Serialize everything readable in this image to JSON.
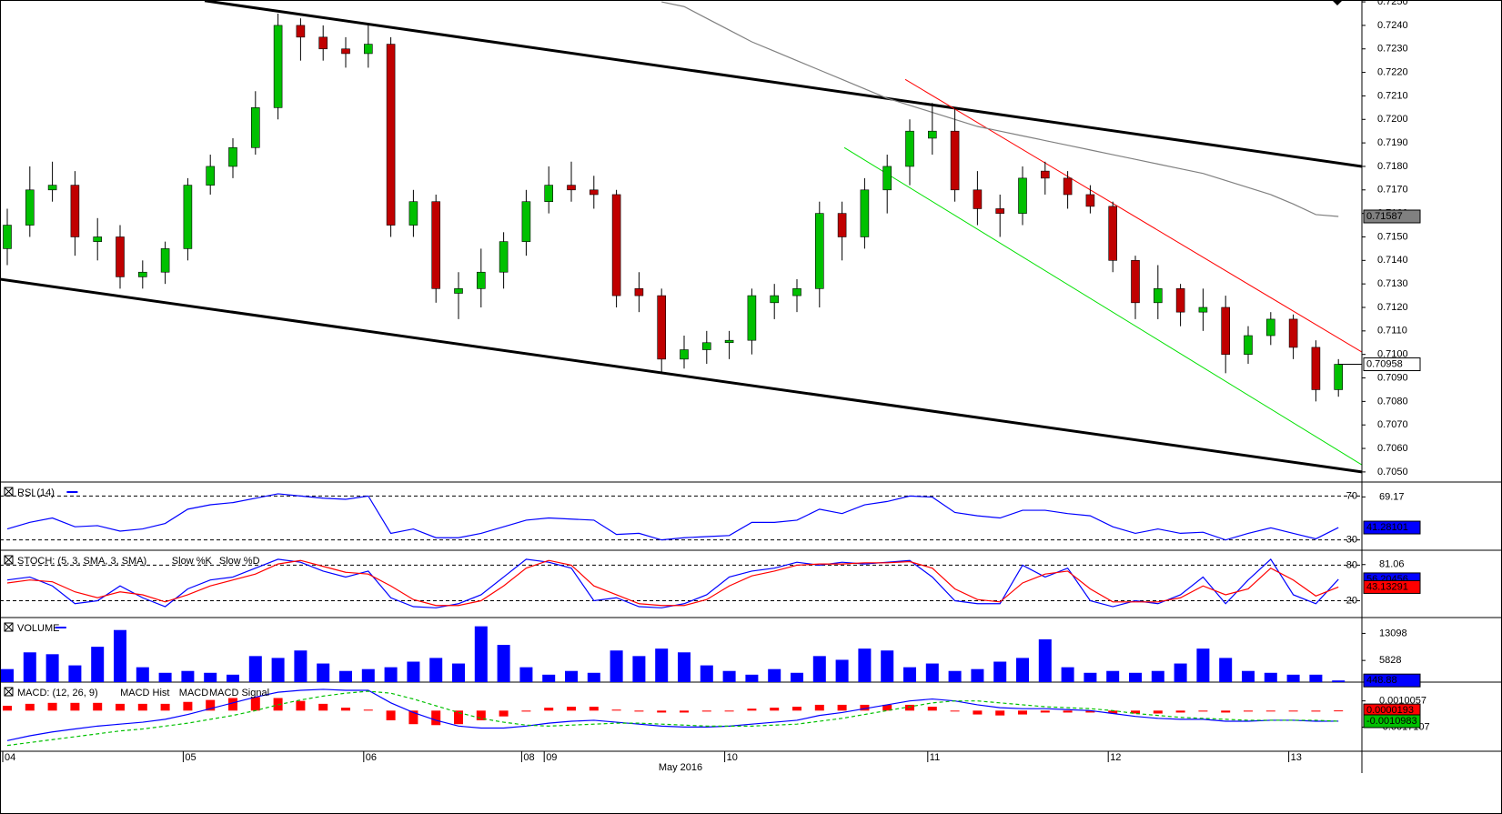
{
  "chart_data": [
    {
      "type": "candlestick",
      "up_color": "#00c000",
      "down_color": "#c00000",
      "categories": [
        "04",
        null,
        null,
        null,
        null,
        null,
        null,
        null,
        "05",
        null,
        null,
        null,
        null,
        null,
        null,
        null,
        "06",
        null,
        null,
        null,
        null,
        null,
        null,
        "08",
        "09",
        null,
        null,
        null,
        null,
        null,
        null,
        null,
        "10",
        null,
        null,
        null,
        null,
        null,
        null,
        null,
        null,
        "11",
        null,
        null,
        null,
        null,
        null,
        null,
        null,
        "12",
        null,
        null,
        null,
        null,
        null,
        null,
        null,
        "13",
        null,
        null
      ],
      "x_axis_label": "May 2016",
      "open": [
        0.7145,
        0.7155,
        0.717,
        0.7172,
        0.7148,
        0.715,
        0.7133,
        0.7135,
        0.7145,
        0.7172,
        0.718,
        0.7188,
        0.7205,
        0.724,
        0.7235,
        0.723,
        0.7228,
        0.7232,
        0.7155,
        0.7165,
        0.7126,
        0.7128,
        0.7135,
        0.7148,
        0.7165,
        0.7172,
        0.717,
        0.7168,
        0.7128,
        0.7125,
        0.7098,
        0.7102,
        0.7105,
        0.7106,
        0.7122,
        0.7125,
        0.7128,
        0.716,
        0.715,
        0.717,
        0.718,
        0.7192,
        0.7195,
        0.717,
        0.7162,
        0.716,
        0.7178,
        0.7175,
        0.7168,
        0.7163,
        0.714,
        0.7122,
        0.7128,
        0.7118,
        0.712,
        0.71,
        0.7108,
        0.7115,
        0.7103,
        0.7085
      ],
      "high": [
        0.7162,
        0.718,
        0.7182,
        0.7178,
        0.7158,
        0.7155,
        0.714,
        0.7148,
        0.7175,
        0.7185,
        0.7192,
        0.7212,
        0.7245,
        0.7243,
        0.724,
        0.7235,
        0.724,
        0.7235,
        0.717,
        0.7168,
        0.7135,
        0.7145,
        0.7152,
        0.717,
        0.718,
        0.7182,
        0.7176,
        0.717,
        0.7135,
        0.7128,
        0.7108,
        0.711,
        0.711,
        0.7128,
        0.713,
        0.7132,
        0.7165,
        0.7165,
        0.7175,
        0.7185,
        0.72,
        0.7207,
        0.7205,
        0.7178,
        0.7168,
        0.718,
        0.7182,
        0.7178,
        0.7172,
        0.7165,
        0.7142,
        0.7138,
        0.713,
        0.7128,
        0.7125,
        0.7112,
        0.7118,
        0.7117,
        0.7106,
        0.7098
      ],
      "low": [
        0.7138,
        0.715,
        0.7165,
        0.7142,
        0.714,
        0.7128,
        0.7128,
        0.713,
        0.714,
        0.7168,
        0.7175,
        0.7185,
        0.72,
        0.7225,
        0.7225,
        0.7222,
        0.7222,
        0.715,
        0.715,
        0.7122,
        0.7115,
        0.712,
        0.7128,
        0.7142,
        0.716,
        0.7165,
        0.7162,
        0.712,
        0.7118,
        0.7092,
        0.7094,
        0.7096,
        0.7098,
        0.71,
        0.7115,
        0.7118,
        0.712,
        0.714,
        0.7145,
        0.716,
        0.7172,
        0.7185,
        0.7165,
        0.7155,
        0.715,
        0.7155,
        0.7168,
        0.7162,
        0.716,
        0.7135,
        0.7115,
        0.7115,
        0.7112,
        0.711,
        0.7092,
        0.7096,
        0.7104,
        0.7098,
        0.708,
        0.7082
      ],
      "close": [
        0.7155,
        0.717,
        0.7172,
        0.715,
        0.715,
        0.7133,
        0.7135,
        0.7145,
        0.7172,
        0.718,
        0.7188,
        0.7205,
        0.724,
        0.7235,
        0.723,
        0.7228,
        0.7232,
        0.7155,
        0.7165,
        0.7128,
        0.7128,
        0.7135,
        0.7148,
        0.7165,
        0.7172,
        0.717,
        0.7168,
        0.7125,
        0.7125,
        0.7098,
        0.7102,
        0.7105,
        0.7106,
        0.7125,
        0.7125,
        0.7128,
        0.716,
        0.715,
        0.717,
        0.718,
        0.7195,
        0.7195,
        0.717,
        0.7162,
        0.716,
        0.7175,
        0.7175,
        0.7168,
        0.7163,
        0.714,
        0.7122,
        0.7128,
        0.7118,
        0.712,
        0.71,
        0.7108,
        0.7115,
        0.7103,
        0.7085,
        0.70958
      ],
      "moving_average": {
        "color": "#808080",
        "values": [
          null,
          null,
          null,
          null,
          null,
          null,
          null,
          null,
          null,
          null,
          null,
          null,
          null,
          null,
          null,
          null,
          null,
          null,
          null,
          null,
          null,
          null,
          null,
          null,
          null,
          null,
          null,
          null,
          null,
          0.725,
          0.7248,
          0.7243,
          0.7238,
          0.7233,
          0.7229,
          0.7225,
          0.7221,
          0.7217,
          0.7213,
          0.7209,
          0.7206,
          0.7203,
          0.72,
          0.7197,
          0.7195,
          0.7193,
          0.7191,
          0.7189,
          0.7187,
          0.7185,
          0.7183,
          0.7181,
          0.7179,
          0.7177,
          0.7174,
          0.7171,
          0.7168,
          0.7164,
          0.71595,
          0.71587
        ]
      },
      "trendlines": [
        {
          "color": "#000000",
          "width": 3,
          "x": [
            8.75,
            60.04
          ],
          "values": [
            0.72505,
            0.718
          ]
        },
        {
          "color": "#000000",
          "width": 3,
          "x": [
            -0.32,
            60.04
          ],
          "values": [
            0.7132,
            0.705
          ]
        },
        {
          "color": "#ff0000",
          "width": 1,
          "x": [
            39.8,
            60.04
          ],
          "values": [
            0.7217,
            0.7101
          ]
        },
        {
          "color": "#00e000",
          "width": 1,
          "x": [
            37.1,
            60.04
          ],
          "values": [
            0.7188,
            0.7053
          ]
        }
      ],
      "ylim": [
        0.70457,
        0.72508
      ],
      "yticks": [
        {
          "value": 0.725,
          "label": "0.7250"
        },
        {
          "value": 0.724,
          "label": "0.7240"
        },
        {
          "value": 0.723,
          "label": "0.7230"
        },
        {
          "value": 0.722,
          "label": "0.7220"
        },
        {
          "value": 0.721,
          "label": "0.7210"
        },
        {
          "value": 0.72,
          "label": "0.7200"
        },
        {
          "value": 0.719,
          "label": "0.7190"
        },
        {
          "value": 0.718,
          "label": "0.7180"
        },
        {
          "value": 0.717,
          "label": "0.7170"
        },
        {
          "value": 0.716,
          "label": "0.7160"
        },
        {
          "value": 0.715,
          "label": "0.7150"
        },
        {
          "value": 0.714,
          "label": "0.7140"
        },
        {
          "value": 0.713,
          "label": "0.7130"
        },
        {
          "value": 0.712,
          "label": "0.7120"
        },
        {
          "value": 0.711,
          "label": "0.7110"
        },
        {
          "value": 0.71,
          "label": "0.7100"
        },
        {
          "value": 0.709,
          "label": "0.7090"
        },
        {
          "value": 0.708,
          "label": "0.7080"
        },
        {
          "value": 0.707,
          "label": "0.7070"
        },
        {
          "value": 0.706,
          "label": "0.7060"
        },
        {
          "value": 0.705,
          "label": "0.7050"
        }
      ]
    },
    {
      "type": "line",
      "title": "RSI (14)",
      "ylim": [
        20.6,
        81.9
      ],
      "yticks": [
        69.17
      ],
      "levels": [
        70,
        30
      ],
      "series": [
        {
          "color": "#0000ff",
          "style": "line",
          "box": true,
          "values": [
            40,
            46,
            50,
            42,
            43,
            38,
            40,
            45,
            58,
            62,
            64,
            68,
            72,
            70,
            68,
            67,
            70,
            36,
            40,
            32,
            32,
            36,
            42,
            48,
            50,
            49,
            48,
            35,
            36,
            30,
            32,
            33,
            34,
            46,
            46,
            48,
            58,
            54,
            62,
            65,
            70,
            69,
            55,
            52,
            50,
            57,
            57,
            54,
            52,
            42,
            36,
            40,
            36,
            37,
            30,
            36,
            41,
            36,
            31,
            41.28101
          ]
        }
      ]
    },
    {
      "type": "line",
      "title": "STOCH: (5, 3, SMA, 3, SMA)",
      "ylim": [
        -8.4,
        103.7
      ],
      "yticks": [
        81.06
      ],
      "levels": [
        80,
        20
      ],
      "series": [
        {
          "name": "Slow %K",
          "color": "#0000ff",
          "style": "line",
          "box": true,
          "values": [
            55,
            60,
            45,
            15,
            20,
            45,
            25,
            10,
            40,
            55,
            60,
            75,
            90,
            85,
            70,
            60,
            70,
            25,
            10,
            8,
            15,
            30,
            60,
            90,
            85,
            75,
            20,
            25,
            10,
            8,
            15,
            30,
            60,
            70,
            75,
            85,
            80,
            85,
            82,
            85,
            88,
            60,
            20,
            15,
            15,
            80,
            60,
            75,
            20,
            10,
            20,
            15,
            30,
            60,
            15,
            55,
            90,
            30,
            15,
            56.20456
          ]
        },
        {
          "name": "Slow %D",
          "color": "#ff0000",
          "style": "line",
          "box": true,
          "values": [
            50,
            55,
            52,
            35,
            25,
            35,
            30,
            18,
            30,
            45,
            55,
            65,
            82,
            88,
            78,
            68,
            65,
            45,
            22,
            12,
            12,
            20,
            45,
            75,
            88,
            80,
            45,
            30,
            15,
            12,
            12,
            22,
            45,
            62,
            70,
            80,
            82,
            82,
            84,
            84,
            86,
            75,
            40,
            22,
            18,
            50,
            65,
            70,
            40,
            18,
            18,
            18,
            25,
            45,
            30,
            40,
            75,
            55,
            28,
            43.13291
          ]
        }
      ]
    },
    {
      "type": "bar",
      "title": "VOLUME",
      "ylim": [
        0,
        17110
      ],
      "yticks": [
        13098,
        5828
      ],
      "series": [
        {
          "color": "#0000ff",
          "style": "bar",
          "box": true,
          "values": [
            3500,
            8000,
            7500,
            4500,
            9500,
            14000,
            4000,
            2500,
            3000,
            2500,
            2000,
            7000,
            6500,
            8500,
            5000,
            3000,
            3500,
            4000,
            5500,
            6500,
            5000,
            15000,
            10000,
            4000,
            2000,
            3000,
            2500,
            8500,
            7000,
            9000,
            8000,
            4500,
            3000,
            2000,
            3500,
            2500,
            7000,
            6000,
            9000,
            8500,
            4000,
            5000,
            3000,
            3500,
            5500,
            6500,
            11500,
            4000,
            2500,
            3000,
            2500,
            3000,
            5000,
            9000,
            6500,
            3000,
            2500,
            2000,
            2000,
            448.88
          ]
        }
      ]
    },
    {
      "type": "macd",
      "title": "MACD: (12, 26, 9)",
      "ylim": [
        -0.0042,
        0.00285
      ],
      "yticks": [
        0.0010057,
        -0.0017107
      ],
      "series": [
        {
          "name": "MACD Hist",
          "color": "#ff0000",
          "style": "bar",
          "box": true,
          "values": [
            0.0005,
            0.0007,
            0.0008,
            0.0008,
            0.0008,
            0.0007,
            0.0007,
            0.0007,
            0.0009,
            0.0011,
            0.0013,
            0.0014,
            0.0013,
            0.001,
            0.0007,
            0.0003,
            0.0001,
            -0.001,
            -0.0014,
            -0.0015,
            -0.0014,
            -0.001,
            -0.0006,
            -0.0001,
            0.0003,
            0.0004,
            0.0004,
            0.0001,
            -0.0001,
            -0.0002,
            -0.0002,
            -0.0001,
            0.0,
            0.0002,
            0.0003,
            0.0004,
            0.0006,
            0.0006,
            0.0006,
            0.0006,
            0.0006,
            0.0004,
            0.0,
            -0.0004,
            -0.0005,
            -0.0004,
            -0.0002,
            -0.0002,
            -0.0002,
            -0.0003,
            -0.0003,
            -0.0003,
            -0.0002,
            -0.0001,
            -0.0002,
            -0.0001,
            0.0,
            0.0,
            -0.0001,
            1.93e-05
          ]
        },
        {
          "name": "MACD",
          "color": "#0000ff",
          "style": "line",
          "box": false,
          "values": [
            -0.0031,
            -0.0026,
            -0.0022,
            -0.0019,
            -0.0016,
            -0.0014,
            -0.0012,
            -0.0009,
            -0.0004,
            0.0002,
            0.0008,
            0.0014,
            0.0019,
            0.0021,
            0.0022,
            0.0021,
            0.0021,
            0.0008,
            -0.0002,
            -0.001,
            -0.0016,
            -0.0018,
            -0.0018,
            -0.0016,
            -0.0013,
            -0.0011,
            -0.001,
            -0.0012,
            -0.0014,
            -0.0016,
            -0.0017,
            -0.0017,
            -0.0016,
            -0.0014,
            -0.0012,
            -0.001,
            -0.0005,
            -0.0002,
            0.0002,
            0.0006,
            0.001,
            0.0012,
            0.001,
            0.0006,
            0.0003,
            0.0002,
            0.0002,
            0.0001,
            0.0,
            -0.0003,
            -0.0006,
            -0.0008,
            -0.0009,
            -0.0009,
            -0.0011,
            -0.0011,
            -0.001,
            -0.001,
            -0.0011,
            -0.00109
          ]
        },
        {
          "name": "MACD Signal",
          "color": "#00c000",
          "style": "dashed",
          "box": true,
          "values": [
            -0.0036,
            -0.0033,
            -0.003,
            -0.0027,
            -0.0024,
            -0.0021,
            -0.0019,
            -0.0016,
            -0.0013,
            -0.0009,
            -0.0005,
            0.0,
            0.0006,
            0.0011,
            0.0015,
            0.0018,
            0.002,
            0.0018,
            0.0012,
            0.0005,
            -0.0002,
            -0.0008,
            -0.0012,
            -0.0015,
            -0.0016,
            -0.0015,
            -0.0014,
            -0.0013,
            -0.0013,
            -0.0014,
            -0.0015,
            -0.0016,
            -0.0016,
            -0.0016,
            -0.0015,
            -0.0014,
            -0.0011,
            -0.0008,
            -0.0004,
            0.0,
            0.0004,
            0.0008,
            0.001,
            0.001,
            0.0008,
            0.0006,
            0.0004,
            0.0003,
            0.0002,
            0.0,
            -0.0003,
            -0.0005,
            -0.0007,
            -0.0008,
            -0.0009,
            -0.001,
            -0.001,
            -0.001,
            -0.001,
            -0.0010983
          ]
        }
      ]
    }
  ]
}
